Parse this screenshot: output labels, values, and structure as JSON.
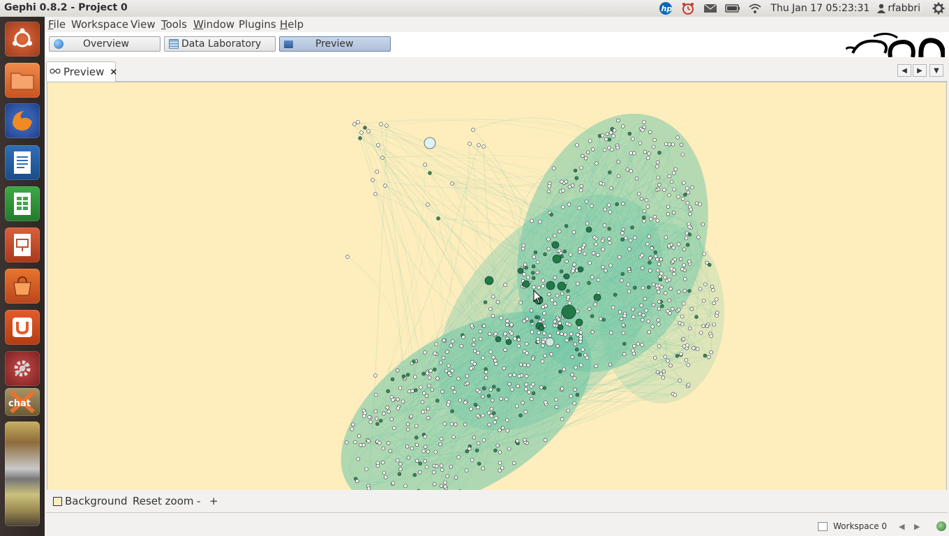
{
  "app": {
    "window_title": "Gephi 0.8.2 - Project 0"
  },
  "system_tray": {
    "icons": [
      "hp-icon",
      "alarm-clock-icon",
      "mail-icon",
      "battery-icon",
      "wifi-icon",
      "user-icon",
      "power-gear-icon"
    ],
    "clock": "Thu Jan 17 05:23:31",
    "user": "rfabbri"
  },
  "launcher": {
    "items": [
      "ubuntu-dash",
      "files",
      "firefox",
      "libreoffice-writer",
      "libreoffice-calc",
      "libreoffice-impress",
      "software-center",
      "ubuntu-one",
      "system-settings",
      "xchat",
      "stacked-apps"
    ]
  },
  "menubar": {
    "items": [
      {
        "label": "File",
        "mnemonic": "F",
        "rest": "ile"
      },
      {
        "label": "Workspace",
        "mnemonic": "",
        "rest": "Workspace"
      },
      {
        "label": "View",
        "mnemonic": "",
        "rest": "View"
      },
      {
        "label": "Tools",
        "mnemonic": "T",
        "rest": "ools"
      },
      {
        "label": "Window",
        "mnemonic": "W",
        "rest": "indow"
      },
      {
        "label": "Plugins",
        "mnemonic": "",
        "rest": "Plugins"
      },
      {
        "label": "Help",
        "mnemonic": "H",
        "rest": "elp"
      }
    ]
  },
  "toolbar": {
    "overview": "Overview",
    "data_laboratory": "Data Laboratory",
    "preview": "Preview",
    "active": "Preview"
  },
  "tabs": {
    "preview_tab": "Preview",
    "close_glyph": "×"
  },
  "preview_canvas": {
    "background_color": "#feedbd",
    "edge_color": "#6cc7a8",
    "node_fill": "#ffffff",
    "hub_color": "#1f7a45"
  },
  "preview_controls": {
    "background_label": "Background",
    "reset_zoom": "Reset zoom",
    "zoom_out": "-",
    "zoom_in": "+"
  },
  "statusbar": {
    "workspace": "Workspace 0"
  }
}
